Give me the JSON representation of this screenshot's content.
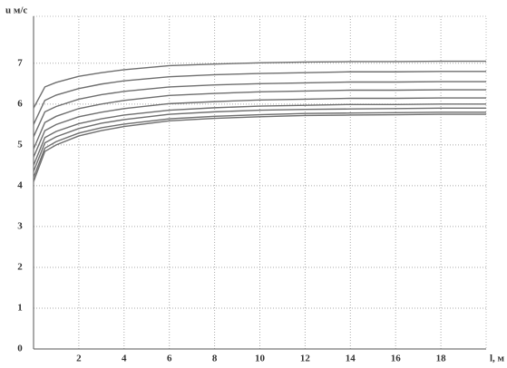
{
  "chart_data": {
    "type": "line",
    "y_label": "u м/с",
    "x_label": "l, м",
    "x": [
      0,
      0.5,
      1,
      2,
      3,
      4,
      6,
      8,
      10,
      12,
      14,
      16,
      18,
      20
    ],
    "series": [
      {
        "color": "#6e6e6e",
        "values": [
          5.9,
          6.42,
          6.53,
          6.68,
          6.77,
          6.84,
          6.94,
          6.98,
          7.01,
          7.03,
          7.04,
          7.04,
          7.05,
          7.05
        ]
      },
      {
        "color": "#6e6e6e",
        "values": [
          5.5,
          6.09,
          6.22,
          6.38,
          6.49,
          6.57,
          6.67,
          6.72,
          6.75,
          6.77,
          6.79,
          6.79,
          6.8,
          6.8
        ]
      },
      {
        "color": "#6e6e6e",
        "values": [
          5.2,
          5.81,
          5.94,
          6.12,
          6.23,
          6.31,
          6.42,
          6.47,
          6.5,
          6.52,
          6.54,
          6.54,
          6.55,
          6.55
        ]
      },
      {
        "color": "#6e6e6e",
        "values": [
          4.9,
          5.55,
          5.7,
          5.89,
          6.0,
          6.09,
          6.21,
          6.26,
          6.3,
          6.32,
          6.34,
          6.34,
          6.35,
          6.35
        ]
      },
      {
        "color": "#6e6e6e",
        "values": [
          4.7,
          5.35,
          5.5,
          5.69,
          5.8,
          5.89,
          6.01,
          6.06,
          6.1,
          6.12,
          6.14,
          6.14,
          6.15,
          6.15
        ]
      },
      {
        "color": "#6e6e6e",
        "values": [
          4.5,
          5.18,
          5.33,
          5.52,
          5.64,
          5.73,
          5.85,
          5.91,
          5.95,
          5.97,
          5.99,
          5.99,
          6.0,
          6.0
        ]
      },
      {
        "color": "#6e6e6e",
        "values": [
          4.35,
          5.05,
          5.2,
          5.4,
          5.53,
          5.62,
          5.75,
          5.81,
          5.85,
          5.87,
          5.88,
          5.89,
          5.9,
          5.9
        ]
      },
      {
        "color": "#6e6e6e",
        "values": [
          4.2,
          4.92,
          5.08,
          5.29,
          5.42,
          5.51,
          5.64,
          5.7,
          5.74,
          5.77,
          5.78,
          5.79,
          5.8,
          5.8
        ]
      },
      {
        "color": "#6e6e6e",
        "values": [
          4.1,
          4.84,
          5.0,
          5.22,
          5.35,
          5.45,
          5.59,
          5.65,
          5.69,
          5.72,
          5.73,
          5.74,
          5.75,
          5.75
        ]
      }
    ],
    "xlim": [
      0,
      20
    ],
    "xticks": [
      2,
      4,
      6,
      8,
      10,
      12,
      14,
      16,
      18
    ],
    "ylim": [
      0,
      8.15
    ],
    "yticks": [
      0,
      1,
      2,
      3,
      4,
      5,
      6,
      7
    ],
    "grid": true
  }
}
